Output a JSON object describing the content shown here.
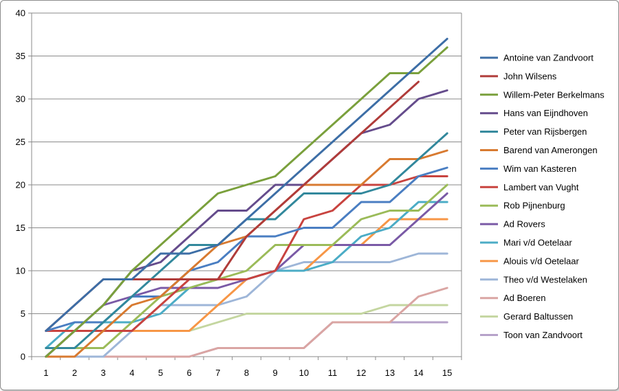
{
  "chart_data": {
    "type": "line",
    "x": [
      1,
      2,
      3,
      4,
      5,
      6,
      7,
      8,
      9,
      10,
      11,
      12,
      13,
      14,
      15
    ],
    "ylim": [
      0,
      40
    ],
    "yticks": [
      0,
      5,
      10,
      15,
      20,
      25,
      30,
      35,
      40
    ],
    "grid": true,
    "legend_position": "right",
    "series": [
      {
        "name": "Antoine van Zandvoort",
        "color": "#3d6ea6",
        "values": [
          3,
          6,
          9,
          9,
          12,
          12,
          13,
          16,
          19,
          22,
          25,
          28,
          31,
          34,
          37
        ]
      },
      {
        "name": "John Wilsens",
        "color": "#b03c3a",
        "values": [
          3,
          6,
          9,
          9,
          9,
          9,
          9,
          14,
          17,
          20,
          23,
          26,
          29,
          32,
          null
        ]
      },
      {
        "name": "Willem-Peter Berkelmans",
        "color": "#7aa03c",
        "values": [
          0,
          3,
          6,
          10,
          13,
          16,
          19,
          20,
          21,
          24,
          27,
          30,
          33,
          33,
          36
        ]
      },
      {
        "name": "Hans van Eijndhoven",
        "color": "#654c8c",
        "values": [
          0,
          3,
          6,
          10,
          11,
          14,
          17,
          17,
          20,
          20,
          23,
          26,
          27,
          30,
          31
        ]
      },
      {
        "name": "Peter van Rijsbergen",
        "color": "#32889c",
        "values": [
          1,
          1,
          4,
          7,
          10,
          13,
          13,
          16,
          16,
          19,
          19,
          19,
          20,
          23,
          26
        ]
      },
      {
        "name": "Barend van Amerongen",
        "color": "#d87a30",
        "values": [
          0,
          0,
          3,
          6,
          7,
          10,
          13,
          14,
          17,
          20,
          20,
          20,
          23,
          23,
          24
        ]
      },
      {
        "name": "Wim van Kasteren",
        "color": "#4a7ec2",
        "values": [
          3,
          4,
          4,
          7,
          7,
          10,
          11,
          14,
          14,
          15,
          15,
          18,
          18,
          21,
          22
        ]
      },
      {
        "name": "Lambert van Vught",
        "color": "#c8433f",
        "values": [
          3,
          3,
          3,
          3,
          6,
          9,
          9,
          9,
          10,
          16,
          17,
          20,
          20,
          21,
          21
        ]
      },
      {
        "name": "Rob Pijnenburg",
        "color": "#9bbb59",
        "values": [
          1,
          1,
          1,
          4,
          7,
          8,
          9,
          10,
          13,
          13,
          13,
          16,
          17,
          17,
          20
        ]
      },
      {
        "name": "Ad Rovers",
        "color": "#7a5aa6",
        "values": [
          0,
          3,
          6,
          7,
          8,
          8,
          8,
          9,
          10,
          13,
          13,
          13,
          13,
          16,
          19
        ]
      },
      {
        "name": "Mari v/d Oetelaar",
        "color": "#4bacc6",
        "values": [
          1,
          4,
          4,
          4,
          5,
          8,
          9,
          9,
          10,
          10,
          11,
          14,
          15,
          18,
          18
        ]
      },
      {
        "name": "Alouis v/d Oetelaar",
        "color": "#f79646",
        "values": [
          3,
          3,
          3,
          3,
          3,
          3,
          6,
          9,
          10,
          10,
          13,
          13,
          16,
          16,
          16
        ]
      },
      {
        "name": "Theo v/d Westelaken",
        "color": "#9eb6d8",
        "values": [
          0,
          0,
          0,
          3,
          6,
          6,
          6,
          7,
          10,
          11,
          11,
          11,
          11,
          12,
          12
        ]
      },
      {
        "name": "Ad Boeren",
        "color": "#daa5a3",
        "values": [
          0,
          0,
          0,
          0,
          0,
          0,
          1,
          1,
          1,
          1,
          4,
          4,
          4,
          7,
          8
        ]
      },
      {
        "name": "Gerard Baltussen",
        "color": "#c4d6a0",
        "values": [
          0,
          3,
          3,
          3,
          3,
          3,
          4,
          5,
          5,
          5,
          5,
          5,
          6,
          6,
          6
        ]
      },
      {
        "name": "Toon van Zandvoort",
        "color": "#b6a2c9",
        "values": [
          0,
          0,
          0,
          0,
          0,
          0,
          1,
          1,
          1,
          1,
          4,
          4,
          4,
          4,
          4
        ]
      }
    ]
  }
}
